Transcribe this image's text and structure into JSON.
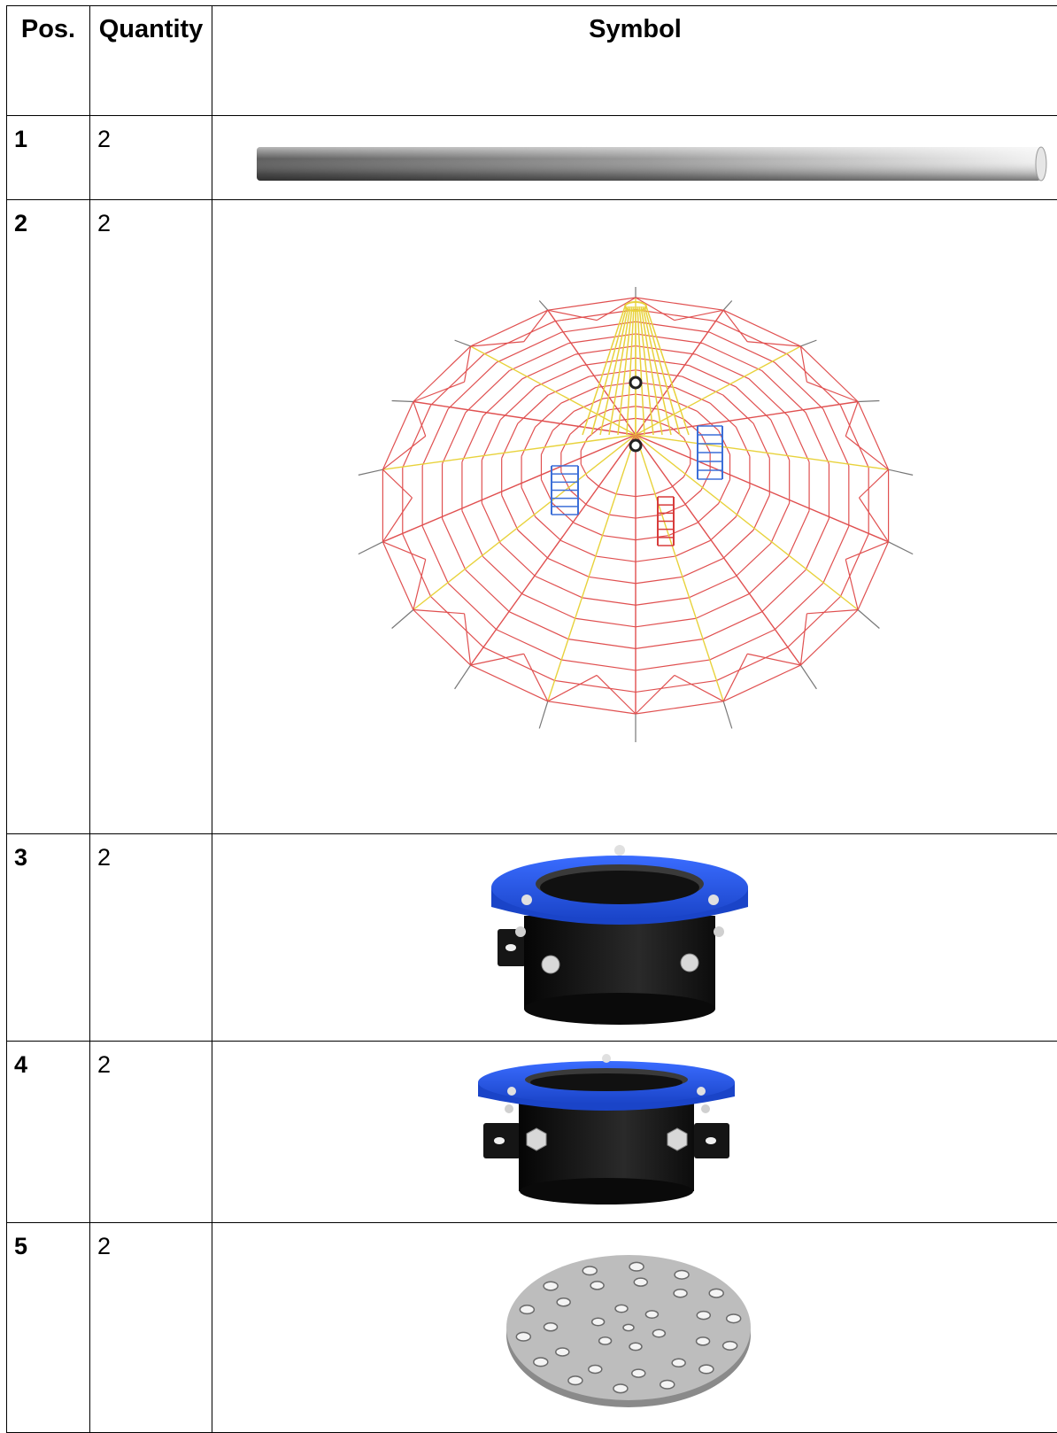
{
  "table": {
    "headers": {
      "pos": "Pos.",
      "quantity": "Quantity",
      "symbol": "Symbol"
    },
    "rows": [
      {
        "pos": "1",
        "quantity": "2",
        "symbol_icon": "tube-icon"
      },
      {
        "pos": "2",
        "quantity": "2",
        "symbol_icon": "spider-web-net-icon"
      },
      {
        "pos": "3",
        "quantity": "2",
        "symbol_icon": "tall-blue-flange-sleeve-icon"
      },
      {
        "pos": "4",
        "quantity": "2",
        "symbol_icon": "short-blue-flange-sleeve-icon"
      },
      {
        "pos": "5",
        "quantity": "2",
        "symbol_icon": "perforated-disc-icon"
      }
    ]
  },
  "colors": {
    "flange_blue": "#1e52e6",
    "sleeve_black": "#141414",
    "net_red": "#e05050",
    "net_yellow": "#e8d23c"
  }
}
